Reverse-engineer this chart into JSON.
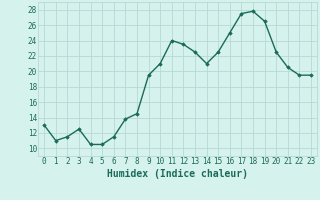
{
  "x": [
    0,
    1,
    2,
    3,
    4,
    5,
    6,
    7,
    8,
    9,
    10,
    11,
    12,
    13,
    14,
    15,
    16,
    17,
    18,
    19,
    20,
    21,
    22,
    23
  ],
  "y": [
    13,
    11,
    11.5,
    12.5,
    10.5,
    10.5,
    11.5,
    13.8,
    14.5,
    19.5,
    21,
    24,
    23.5,
    22.5,
    21,
    22.5,
    25,
    27.5,
    27.8,
    26.5,
    22.5,
    20.5,
    19.5,
    19.5
  ],
  "xlabel": "Humidex (Indice chaleur)",
  "ylim": [
    9,
    29
  ],
  "xlim": [
    -0.5,
    23.5
  ],
  "yticks": [
    10,
    12,
    14,
    16,
    18,
    20,
    22,
    24,
    26,
    28
  ],
  "xticks": [
    0,
    1,
    2,
    3,
    4,
    5,
    6,
    7,
    8,
    9,
    10,
    11,
    12,
    13,
    14,
    15,
    16,
    17,
    18,
    19,
    20,
    21,
    22,
    23
  ],
  "xtick_labels": [
    "0",
    "1",
    "2",
    "3",
    "4",
    "5",
    "6",
    "7",
    "8",
    "9",
    "10",
    "11",
    "12",
    "13",
    "14",
    "15",
    "16",
    "17",
    "18",
    "19",
    "20",
    "21",
    "22",
    "23"
  ],
  "line_color": "#1a6b5a",
  "marker": "D",
  "marker_size": 1.8,
  "bg_color": "#d6f2ed",
  "grid_color": "#b8d8d3",
  "tick_label_fontsize": 5.5,
  "xlabel_fontsize": 7.0,
  "line_width": 1.0
}
